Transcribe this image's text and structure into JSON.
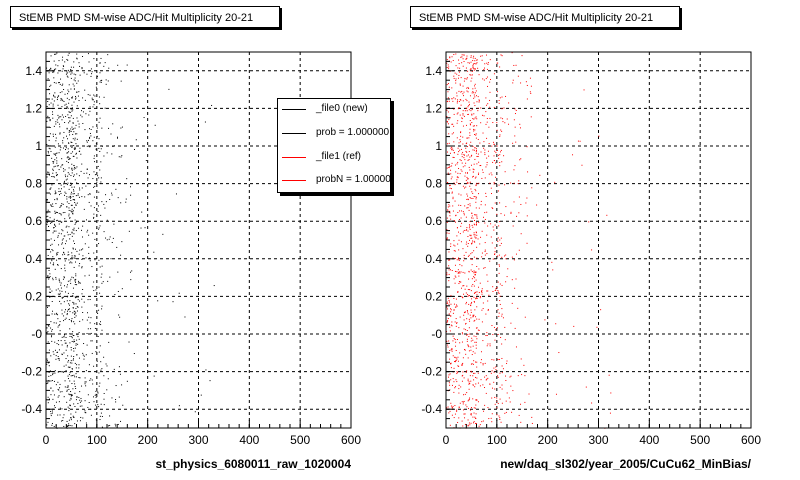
{
  "chart_data": [
    {
      "type": "scatter",
      "title": "StEMB PMD SM-wise ADC/Hit Multiplicity 20-21",
      "xlabel": "st_physics_6080011_raw_1020004",
      "ylabel": "",
      "xlim": [
        0,
        600
      ],
      "ylim": [
        -0.5,
        1.5
      ],
      "xticks": [
        "0",
        "100",
        "200",
        "300",
        "400",
        "500",
        "600"
      ],
      "yticks": [
        "-0.4",
        "-0.2",
        "-0",
        "0.2",
        "0.4",
        "0.6",
        "0.8",
        "1",
        "1.2",
        "1.4"
      ],
      "grid": true,
      "series": [
        {
          "name": "_file0 (new)",
          "color": "#000000"
        }
      ],
      "legend": {
        "placement": "top-right",
        "entries": [
          {
            "label": "_file0 (new)",
            "color": "#000000"
          },
          {
            "label": "prob = 1.000000",
            "color": "#000000"
          },
          {
            "label": "_file1 (ref)",
            "color": "#ff0000"
          },
          {
            "label": "probN = 1.000000",
            "color": "#ff0000"
          }
        ]
      }
    },
    {
      "type": "scatter",
      "title": "StEMB PMD SM-wise ADC/Hit Multiplicity 20-21",
      "xlabel": "new/daq_sl302/year_2005/CuCu62_MinBias/",
      "ylabel": "",
      "xlim": [
        0,
        600
      ],
      "ylim": [
        -0.5,
        1.5
      ],
      "xticks": [
        "0",
        "100",
        "200",
        "300",
        "400",
        "500",
        "600"
      ],
      "yticks": [
        "-0.4",
        "-0.2",
        "-0",
        "0.2",
        "0.4",
        "0.6",
        "0.8",
        "1",
        "1.2",
        "1.4"
      ],
      "grid": true,
      "series": [
        {
          "name": "_file1 (ref)",
          "color": "#ff0000"
        }
      ]
    }
  ]
}
